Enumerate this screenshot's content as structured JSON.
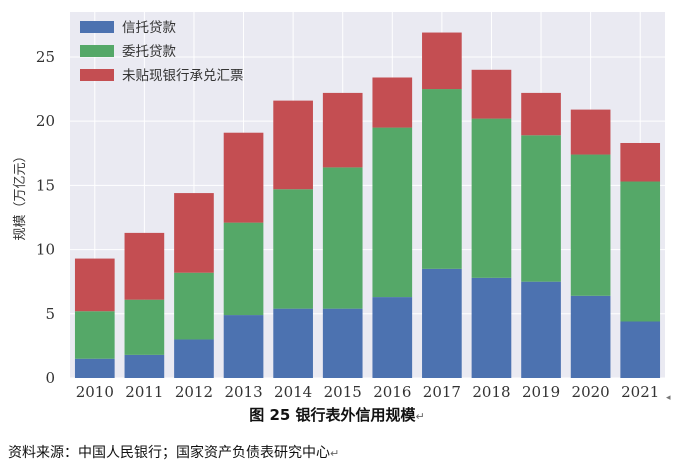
{
  "chart_data": {
    "type": "bar",
    "stacked": true,
    "categories": [
      "2010",
      "2011",
      "2012",
      "2013",
      "2014",
      "2015",
      "2016",
      "2017",
      "2018",
      "2019",
      "2020",
      "2021"
    ],
    "series": [
      {
        "name": "信托贷款",
        "color": "#4c72b0",
        "values": [
          1.5,
          1.8,
          3.0,
          4.9,
          5.4,
          5.4,
          6.3,
          8.5,
          7.8,
          7.5,
          6.4,
          4.4
        ]
      },
      {
        "name": "委托贷款",
        "color": "#55a868",
        "values": [
          3.7,
          4.3,
          5.2,
          7.2,
          9.3,
          11.0,
          13.2,
          14.0,
          12.4,
          11.4,
          11.0,
          10.9
        ]
      },
      {
        "name": "未贴现银行承兑汇票",
        "color": "#c44e52",
        "values": [
          4.1,
          5.2,
          6.2,
          7.0,
          6.9,
          5.8,
          3.9,
          4.4,
          3.8,
          3.3,
          3.5,
          3.0
        ]
      }
    ],
    "title": "",
    "xlabel": "",
    "ylabel": "规模（万亿元）",
    "ylim": [
      0,
      28.5
    ],
    "yticks": [
      0,
      5,
      10,
      15,
      20,
      25
    ],
    "grid": true,
    "legend_position": "top-left",
    "background": "#eaeaf2"
  },
  "caption": "图 25  银行表外信用规模",
  "caption_mark": "↵",
  "source": "资料来源：中国人民银行；国家资产负债表研究中心",
  "source_mark": "↵",
  "side_mark": "◂"
}
